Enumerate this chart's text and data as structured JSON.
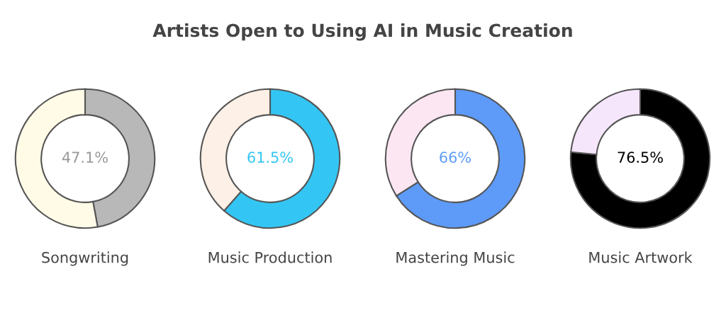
{
  "chart_data": [
    {
      "type": "donut",
      "title": "Artists Open to Using AI in Music Creation",
      "xlabel": "Songwriting",
      "categories": [
        null,
        null
      ],
      "values": [
        47.1,
        52.9
      ],
      "colors": [
        "#b8b8b8",
        "#fffbe6"
      ],
      "value_labels": [
        "47.1%",
        null
      ]
    },
    {
      "type": "donut",
      "xlabel": "Music Production",
      "categories": [
        null,
        null
      ],
      "values": [
        61.5,
        38.5
      ],
      "colors": [
        "#33c6f4",
        "#fdf0e6"
      ],
      "value_labels": [
        "61.5%",
        null
      ]
    },
    {
      "type": "donut",
      "xlabel": "Mastering Music",
      "categories": [
        null,
        null
      ],
      "values": [
        66,
        34
      ],
      "colors": [
        "#5e9bf8",
        "#fce6f2"
      ],
      "value_labels": [
        "66%",
        null
      ]
    },
    {
      "type": "donut",
      "xlabel": "Music Artwork",
      "categories": [
        null,
        null
      ],
      "values": [
        76.5,
        23.5
      ],
      "colors": [
        "#000000",
        "#f5e6fc"
      ],
      "value_labels": [
        "76.5%",
        null
      ]
    }
  ]
}
